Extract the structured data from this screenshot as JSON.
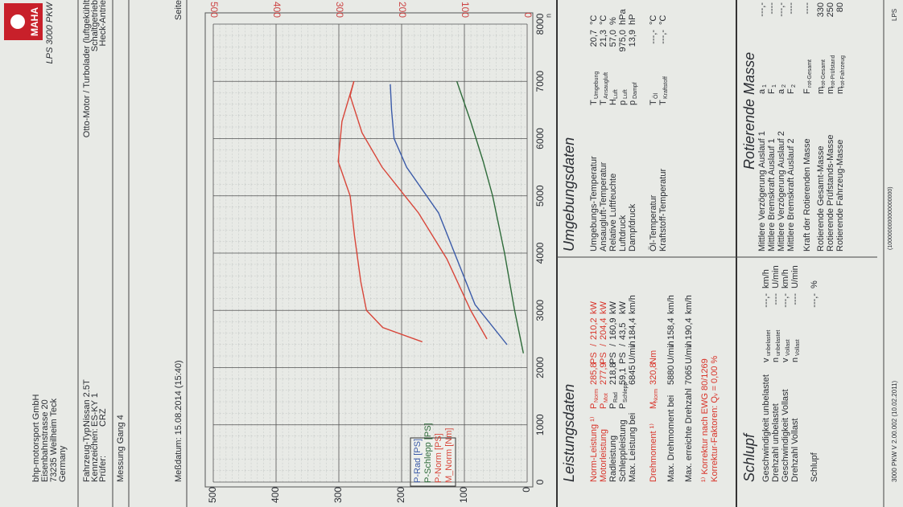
{
  "header": {
    "company": [
      "bhp-motorsport GmbH",
      "Eisenbahnstrasse 20",
      "73235 Weilheim Teck",
      "Germany"
    ],
    "vehicle": [
      [
        "Fahrzeug-Typ:",
        "Nissan 2.5T"
      ],
      [
        "Kennzeichen:",
        "ES-KY 1"
      ],
      [
        "Prüfer:",
        "CRZ"
      ]
    ],
    "measurement": "Messung Gang 4",
    "logo": "MAHA",
    "product": "LPS 3000 PKW",
    "engine": [
      "Otto-Motor / Turbolader (luftgekühlt",
      "Schaltgetrieb",
      "Heck-Antrie"
    ],
    "page": "Seite",
    "date": "Meßdatum: 15.08.2014 (15:40)"
  },
  "chart_data": {
    "type": "line",
    "x_label": "n",
    "xlim": [
      0,
      8000
    ],
    "xticks": [
      0,
      1000,
      2000,
      3000,
      4000,
      5000,
      6000,
      7000,
      8000
    ],
    "ylim": [
      0,
      500
    ],
    "yticks": [
      0,
      100,
      200,
      300,
      400,
      500
    ],
    "grid": true,
    "series": [
      {
        "name": "P-Rad [PS]",
        "color": "#3a5aa8",
        "x": [
          2400,
          3100,
          3900,
          4700,
          5500,
          6000,
          6500,
          6950
        ],
        "values": [
          32,
          83,
          112,
          141,
          192,
          212,
          216,
          218
        ]
      },
      {
        "name": "P-Schlepp [PS]",
        "color": "#2e6b3a",
        "x": [
          2250,
          3000,
          4000,
          5000,
          5600,
          6300,
          7000
        ],
        "values": [
          6,
          20,
          36,
          55,
          70,
          90,
          112
        ]
      },
      {
        "name": "P-Norm [PS]",
        "color": "#d8463a",
        "x": [
          2500,
          3000,
          3900,
          4700,
          5500,
          6100,
          6750,
          7000
        ],
        "values": [
          64,
          90,
          128,
          173,
          231,
          263,
          282,
          276
        ]
      },
      {
        "name": "M_Norm [Nm]",
        "color": "#d8463a",
        "x": [
          2450,
          2700,
          3000,
          3500,
          4300,
          5000,
          5600,
          6300,
          7000
        ],
        "values": [
          167,
          230,
          256,
          265,
          275,
          282,
          301,
          295,
          276
        ]
      }
    ]
  },
  "leistungsdaten": {
    "title": "Leistungsdaten",
    "rows": [
      {
        "label": "Norm-Leistung ¹⁾",
        "symbol": "P",
        "sub": "Norm",
        "cells": [
          "285,8",
          "PS",
          "/",
          "210,2",
          "kW"
        ],
        "color": "#d8342a"
      },
      {
        "label": "Motorleistung",
        "symbol": "P",
        "sub": "Mot",
        "cells": [
          "277,9",
          "PS",
          "/",
          "204,4",
          "kW"
        ],
        "color": "#d8342a"
      },
      {
        "label": "Radleistung",
        "symbol": "P",
        "sub": "Rad",
        "cells": [
          "218,8",
          "PS",
          "/",
          "160,9",
          "kW"
        ]
      },
      {
        "label": "Schleppleistung",
        "symbol": "P",
        "sub": "Schlepp",
        "cells": [
          "59,1",
          "PS",
          "/",
          "43,5",
          "kW"
        ]
      },
      {
        "label": "Max. Leistung bei",
        "cells": [
          "6845",
          "U/min",
          "/",
          "184,4",
          "km/h"
        ]
      },
      {
        "label": "Drehmoment ¹⁾",
        "symbol": "M",
        "sub": "Norm",
        "cells": [
          "320,8",
          "Nm"
        ],
        "color": "#d8342a"
      },
      {
        "label": "Max. Drehmoment bei",
        "cells": [
          "5880",
          "U/min",
          "/",
          "158,4",
          "km/h"
        ]
      },
      {
        "label": "Max. erreichte Drehzahl",
        "cells": [
          "7065",
          "U/min",
          "/",
          "190,4",
          "km/h"
        ]
      },
      {
        "label": "¹⁾ Korrektur nach EWG 80/1269",
        "color": "#d8342a"
      },
      {
        "label": "Korrektur-Faktoren: Qᵥ = 0,00 %",
        "color": "#d8342a"
      }
    ]
  },
  "umgebungsdaten": {
    "title": "Umgebungsdaten",
    "rows": [
      {
        "label": "Umgebungs-Temperatur",
        "symbol": "T",
        "sub": "Umgebung",
        "value": "20,7",
        "unit": "°C"
      },
      {
        "label": "Ansaugluft-Temperatur",
        "symbol": "T",
        "sub": "Ansaugluft",
        "value": "21,3",
        "unit": "°C"
      },
      {
        "label": "Relative Luftfeuchte",
        "symbol": "H",
        "sub": "Luft",
        "value": "57,0",
        "unit": "%"
      },
      {
        "label": "Luftdruck",
        "symbol": "p",
        "sub": "Luft",
        "value": "975,0",
        "unit": "hPa"
      },
      {
        "label": "Dampfdruck",
        "symbol": "p",
        "sub": "Dampf",
        "value": "13,9",
        "unit": "hP"
      },
      {
        "label": "Öl-Temperatur",
        "symbol": "T",
        "sub": "Öl",
        "value": "---,-",
        "unit": "°C"
      },
      {
        "label": "Kraftstoff-Temperatur",
        "symbol": "T",
        "sub": "Kraftstoff",
        "value": "---,-",
        "unit": "°C"
      }
    ]
  },
  "schlupf": {
    "title": "Schlupf",
    "rows": [
      {
        "label": "Geschwindigkeit unbelastet",
        "symbol": "v",
        "sub": "unbelastet",
        "value": "---,-",
        "unit": "km/h"
      },
      {
        "label": "Drehzahl unbelastet",
        "symbol": "n",
        "sub": "unbelastet",
        "value": "----",
        "unit": "U/min"
      },
      {
        "label": "Geschwindigkeit Vollast",
        "symbol": "v",
        "sub": "Vollast",
        "value": "---,-",
        "unit": "km/h"
      },
      {
        "label": "Drehzahl Vollast",
        "symbol": "n",
        "sub": "Vollast",
        "value": "----",
        "unit": "U/min"
      },
      {
        "label": "Schlupf",
        "value": "---,-",
        "unit": "%"
      }
    ]
  },
  "rotierende_masse": {
    "title": "Rotierende Masse",
    "rows": [
      {
        "label": "Mittlere Verzögerung Auslauf 1",
        "symbol": "a",
        "sub": "1",
        "value": "---,-"
      },
      {
        "label": "Mittlere Bremskraft Auslauf 1",
        "symbol": "F",
        "sub": "1",
        "value": "----"
      },
      {
        "label": "Mittlere Verzögerung Auslauf 2",
        "symbol": "a",
        "sub": "2",
        "value": "---,-"
      },
      {
        "label": "Mittlere Bremskraft Auslauf 2",
        "symbol": "F",
        "sub": "2",
        "value": "----"
      },
      {
        "label": "Kraft der Rotierenden Masse",
        "symbol": "F",
        "sub": "rot-Gesamt",
        "value": "----"
      },
      {
        "label": "Rotierende Gesamt-Masse",
        "symbol": "m",
        "sub": "rot-Gesamt",
        "value": "330"
      },
      {
        "label": "Rotierende Prüfstands-Masse",
        "symbol": "m",
        "sub": "rot-Prüfstand",
        "value": "250"
      },
      {
        "label": "Rotierende Fahrzeug-Masse",
        "symbol": "m",
        "sub": "rot-Fahrzeug",
        "value": "80"
      }
    ]
  },
  "footer": {
    "version": "3000 PKW V 2.00.002 (10.02.2011)",
    "code": "(1000000000000000000)",
    "brand": "LPS"
  }
}
